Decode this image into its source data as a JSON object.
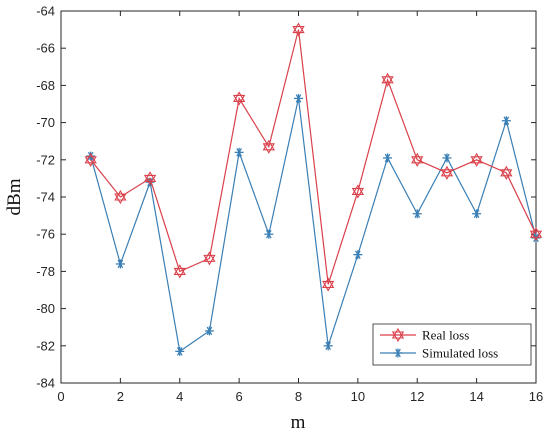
{
  "chart_data": {
    "type": "line",
    "title": "",
    "xlabel": "m",
    "ylabel": "dBm",
    "xlim": [
      0,
      16
    ],
    "ylim": [
      -84,
      -64
    ],
    "x_ticks": [
      "0",
      "2",
      "4",
      "6",
      "8",
      "10",
      "12",
      "14",
      "16"
    ],
    "y_ticks": [
      "-64",
      "-66",
      "-68",
      "-70",
      "-72",
      "-74",
      "-76",
      "-78",
      "-80",
      "-82",
      "-84"
    ],
    "grid": false,
    "legend_position": "bottom-right",
    "x": [
      1,
      2,
      3,
      4,
      5,
      6,
      7,
      8,
      9,
      10,
      11,
      12,
      13,
      14,
      15,
      16
    ],
    "series": [
      {
        "name": "Real loss",
        "color": "#d9404a",
        "marker": "hexagram",
        "values": [
          -72.0,
          -74.0,
          -73.0,
          -78.0,
          -77.3,
          -68.7,
          -71.3,
          -65.0,
          -78.7,
          -73.7,
          -67.7,
          -72.0,
          -72.7,
          -72.0,
          -72.7,
          -76.0
        ]
      },
      {
        "name": "Simulated loss",
        "color": "#3a7fb5",
        "marker": "asterisk",
        "values": [
          -71.8,
          -77.6,
          -73.2,
          -82.3,
          -81.2,
          -71.6,
          -76.0,
          -68.7,
          -82.0,
          -77.1,
          -71.9,
          -74.9,
          -71.9,
          -74.9,
          -69.9,
          -76.2
        ]
      }
    ]
  }
}
